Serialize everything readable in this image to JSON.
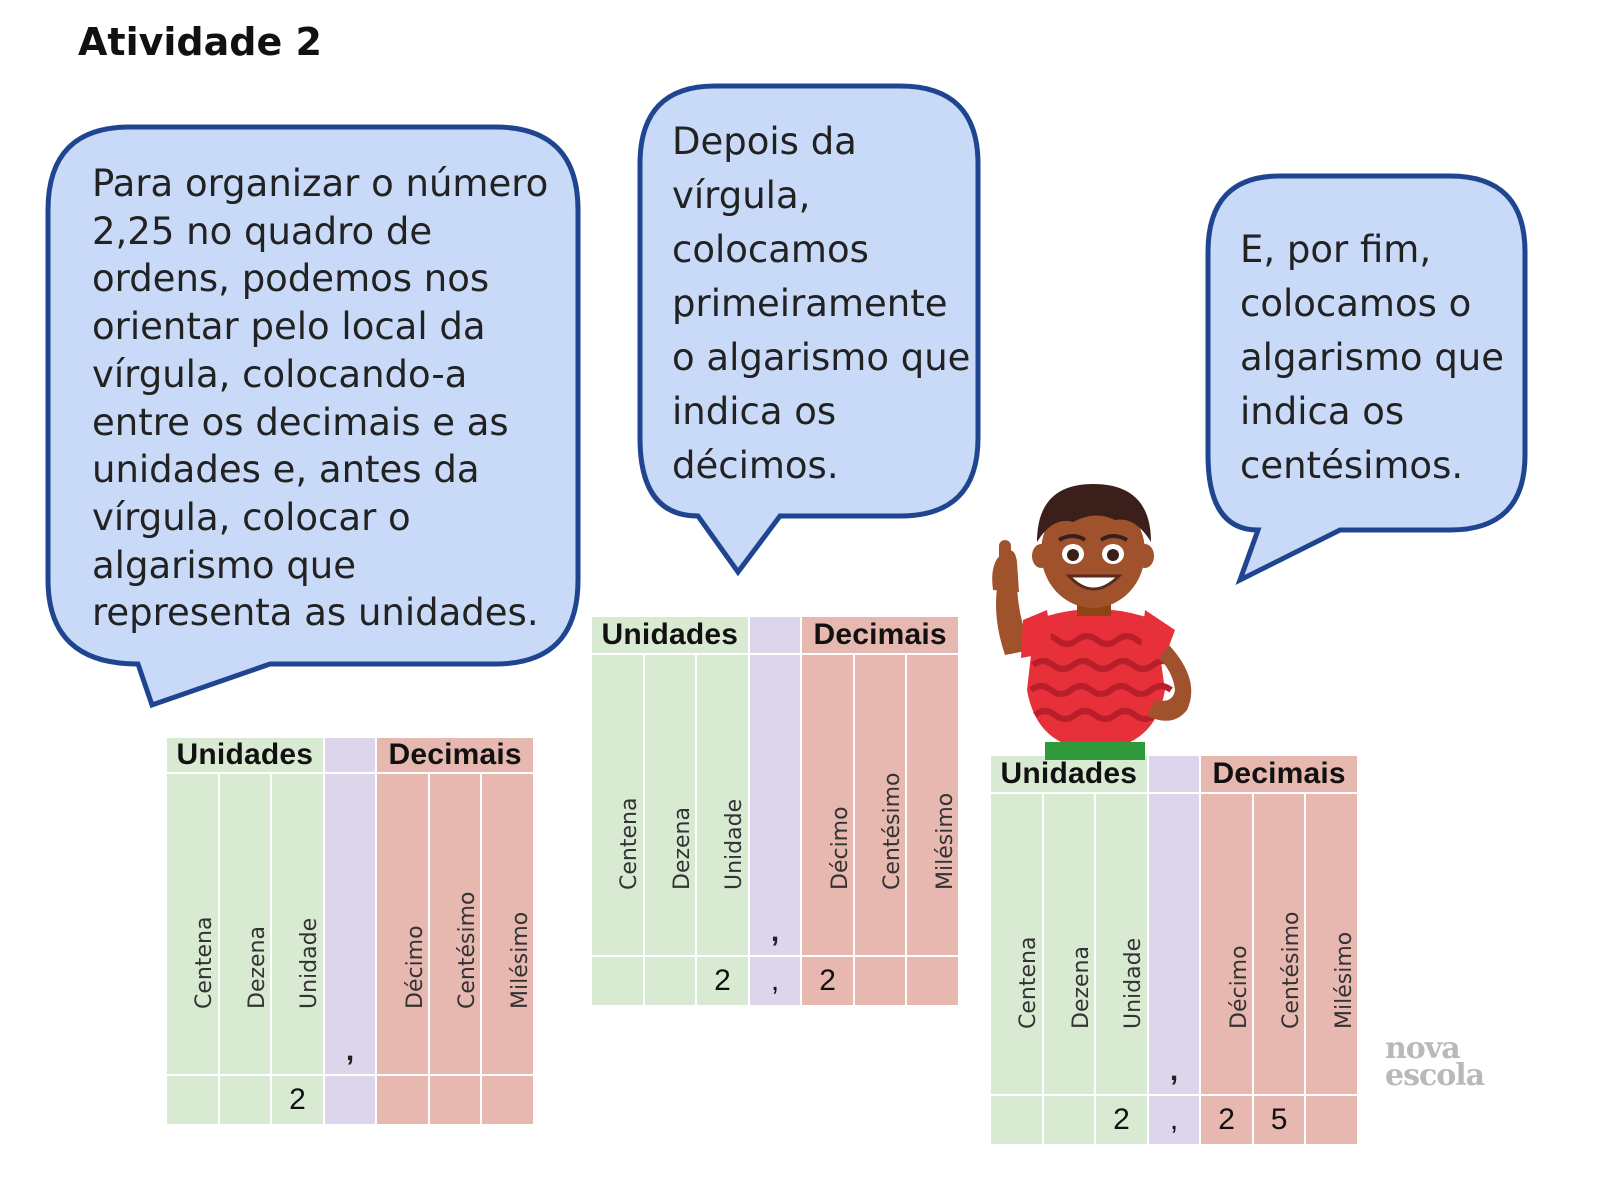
{
  "title": "Atividade 2",
  "bubbles": [
    {
      "text": "Para organizar o número 2,25 no quadro de ordens, podemos nos orientar pelo local da vírgula, colocando-a entre os decimais e as unidades e, antes da vírgula, colocar o algarismo que representa as unidades."
    },
    {
      "text": "Depois da vírgula, colocamos primeiramente o algarismo que indica os décimos."
    },
    {
      "text": "E, por fim, colocamos o algarismo que indica os centésimos."
    }
  ],
  "board_headers": {
    "unidades": "Unidades",
    "decimais": "Decimais"
  },
  "columns": [
    "Centena",
    "Dezena",
    "Unidade",
    ",",
    "Décimo",
    "Centésimo",
    "Milésimo"
  ],
  "boards": [
    {
      "values": [
        "",
        "",
        "2",
        "",
        "",
        "",
        ""
      ]
    },
    {
      "values": [
        "",
        "",
        "2",
        ",",
        "2",
        "",
        ""
      ]
    },
    {
      "values": [
        "",
        "",
        "2",
        ",",
        "2",
        "5",
        ""
      ]
    }
  ],
  "logo": {
    "line1": "nova",
    "line2": "escola"
  },
  "colors": {
    "bubble_fill": "#c9daf8",
    "bubble_stroke": "#1f4590",
    "green": "#d9ead3",
    "purple": "#dcd5ec",
    "red": "#e7b8b0"
  }
}
